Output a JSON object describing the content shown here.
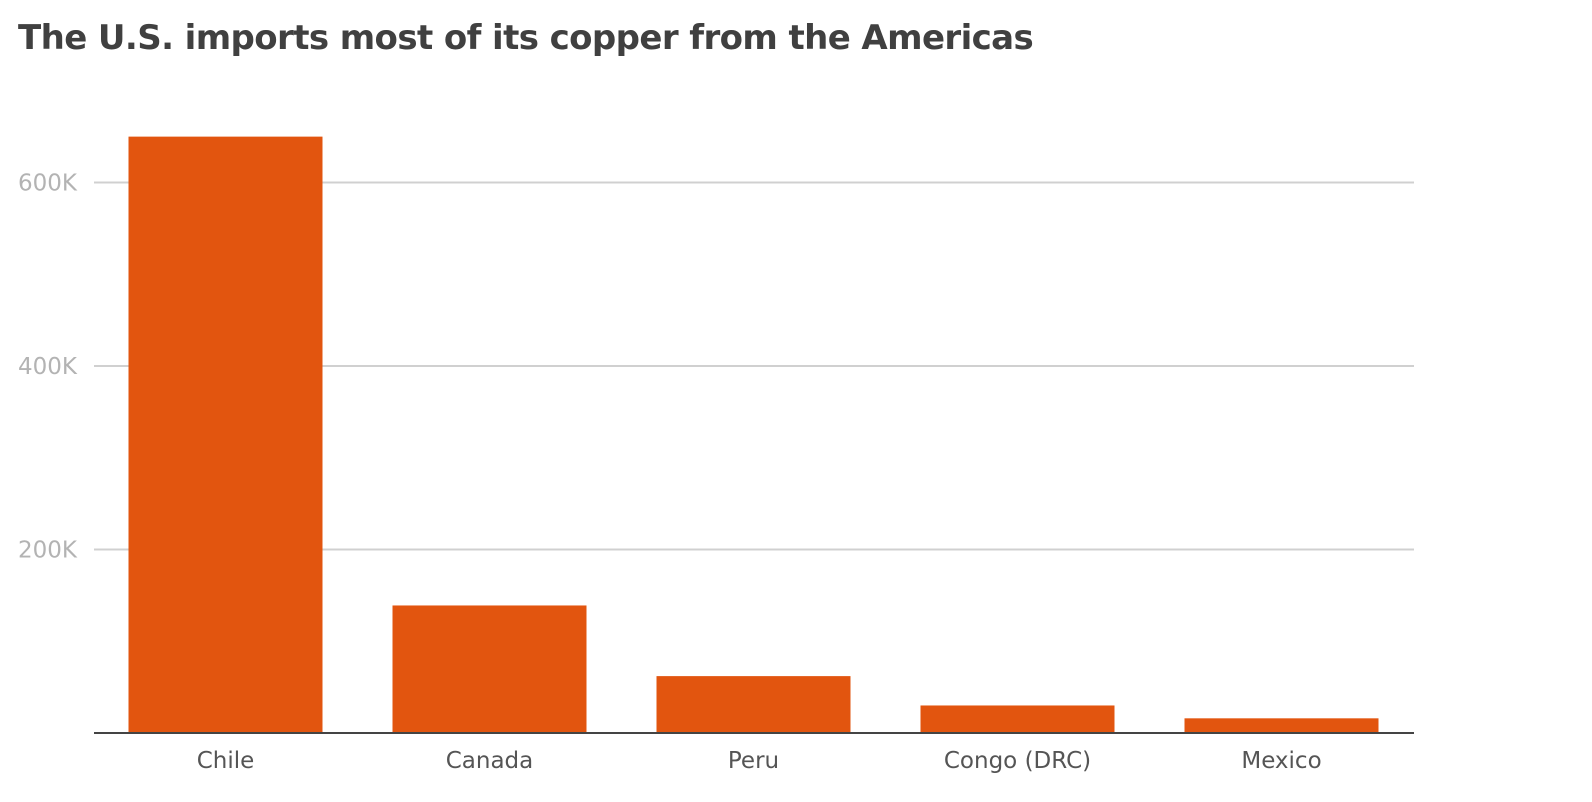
{
  "colors": {
    "bar": "#e2550f",
    "gridline": "#d0d0d0",
    "baseline": "#444444",
    "title": "#404040",
    "tick_label": "#b3b3b3",
    "category_label": "#555555"
  },
  "chart_data": {
    "type": "bar",
    "title": "The U.S. imports most of its copper from the Americas",
    "xlabel": "",
    "ylabel": "",
    "categories": [
      "Chile",
      "Canada",
      "Peru",
      "Congo (DRC)",
      "Mexico"
    ],
    "values": [
      650000,
      139000,
      62000,
      30000,
      16000
    ],
    "ylim": [
      0,
      650000
    ],
    "yticks": [
      200000,
      400000,
      600000
    ],
    "ytick_labels": [
      "200K",
      "400K",
      "600K"
    ],
    "grid": "horizontal",
    "legend": "none"
  }
}
